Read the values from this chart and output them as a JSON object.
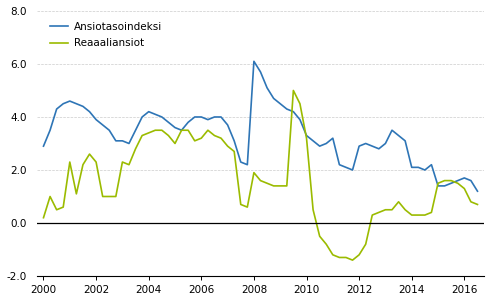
{
  "line1_label": "Ansiotasoindeksi",
  "line2_label": "Reaaaliansiot",
  "line1_color": "#2E75B6",
  "line2_color": "#9BBB00",
  "ylim": [
    -2.0,
    8.0
  ],
  "yticks": [
    -2.0,
    0.0,
    2.0,
    4.0,
    6.0,
    8.0
  ],
  "xtick_years": [
    2000,
    2002,
    2004,
    2006,
    2008,
    2010,
    2012,
    2014,
    2016
  ],
  "background_color": "#ffffff",
  "grid_color": "#cccccc",
  "start_year": 2000,
  "quarter_step": 0.25,
  "n_quarters": 67,
  "line1_data": [
    2.9,
    3.5,
    4.3,
    4.5,
    4.6,
    4.5,
    4.4,
    4.2,
    3.9,
    3.7,
    3.5,
    3.1,
    3.1,
    3.0,
    3.5,
    4.0,
    4.2,
    4.1,
    4.0,
    3.8,
    3.6,
    3.5,
    3.8,
    4.0,
    4.0,
    3.9,
    4.0,
    4.0,
    3.7,
    3.1,
    2.3,
    2.2,
    6.1,
    5.7,
    5.1,
    4.7,
    4.5,
    4.3,
    4.2,
    3.9,
    3.3,
    3.1,
    2.9,
    3.0,
    3.2,
    2.2,
    2.1,
    2.0,
    2.9,
    3.0,
    2.9,
    2.8,
    3.0,
    3.5,
    3.3,
    3.1,
    2.1,
    2.1,
    2.0,
    2.2,
    1.4,
    1.4,
    1.5,
    1.6,
    1.7,
    1.6,
    1.2
  ],
  "line2_data": [
    0.2,
    1.0,
    0.5,
    0.6,
    2.3,
    1.1,
    2.2,
    2.6,
    2.3,
    1.0,
    1.0,
    1.0,
    2.3,
    2.2,
    2.8,
    3.3,
    3.4,
    3.5,
    3.5,
    3.3,
    3.0,
    3.5,
    3.5,
    3.1,
    3.2,
    3.5,
    3.3,
    3.2,
    2.9,
    2.7,
    0.7,
    0.6,
    1.9,
    1.6,
    1.5,
    1.4,
    1.4,
    1.4,
    5.0,
    4.5,
    3.2,
    0.5,
    -0.5,
    -0.8,
    -1.2,
    -1.3,
    -1.3,
    -1.4,
    -1.2,
    -0.8,
    0.3,
    0.4,
    0.5,
    0.5,
    0.8,
    0.5,
    0.3,
    0.3,
    0.3,
    0.4,
    1.5,
    1.6,
    1.6,
    1.5,
    1.3,
    0.8,
    0.7
  ]
}
